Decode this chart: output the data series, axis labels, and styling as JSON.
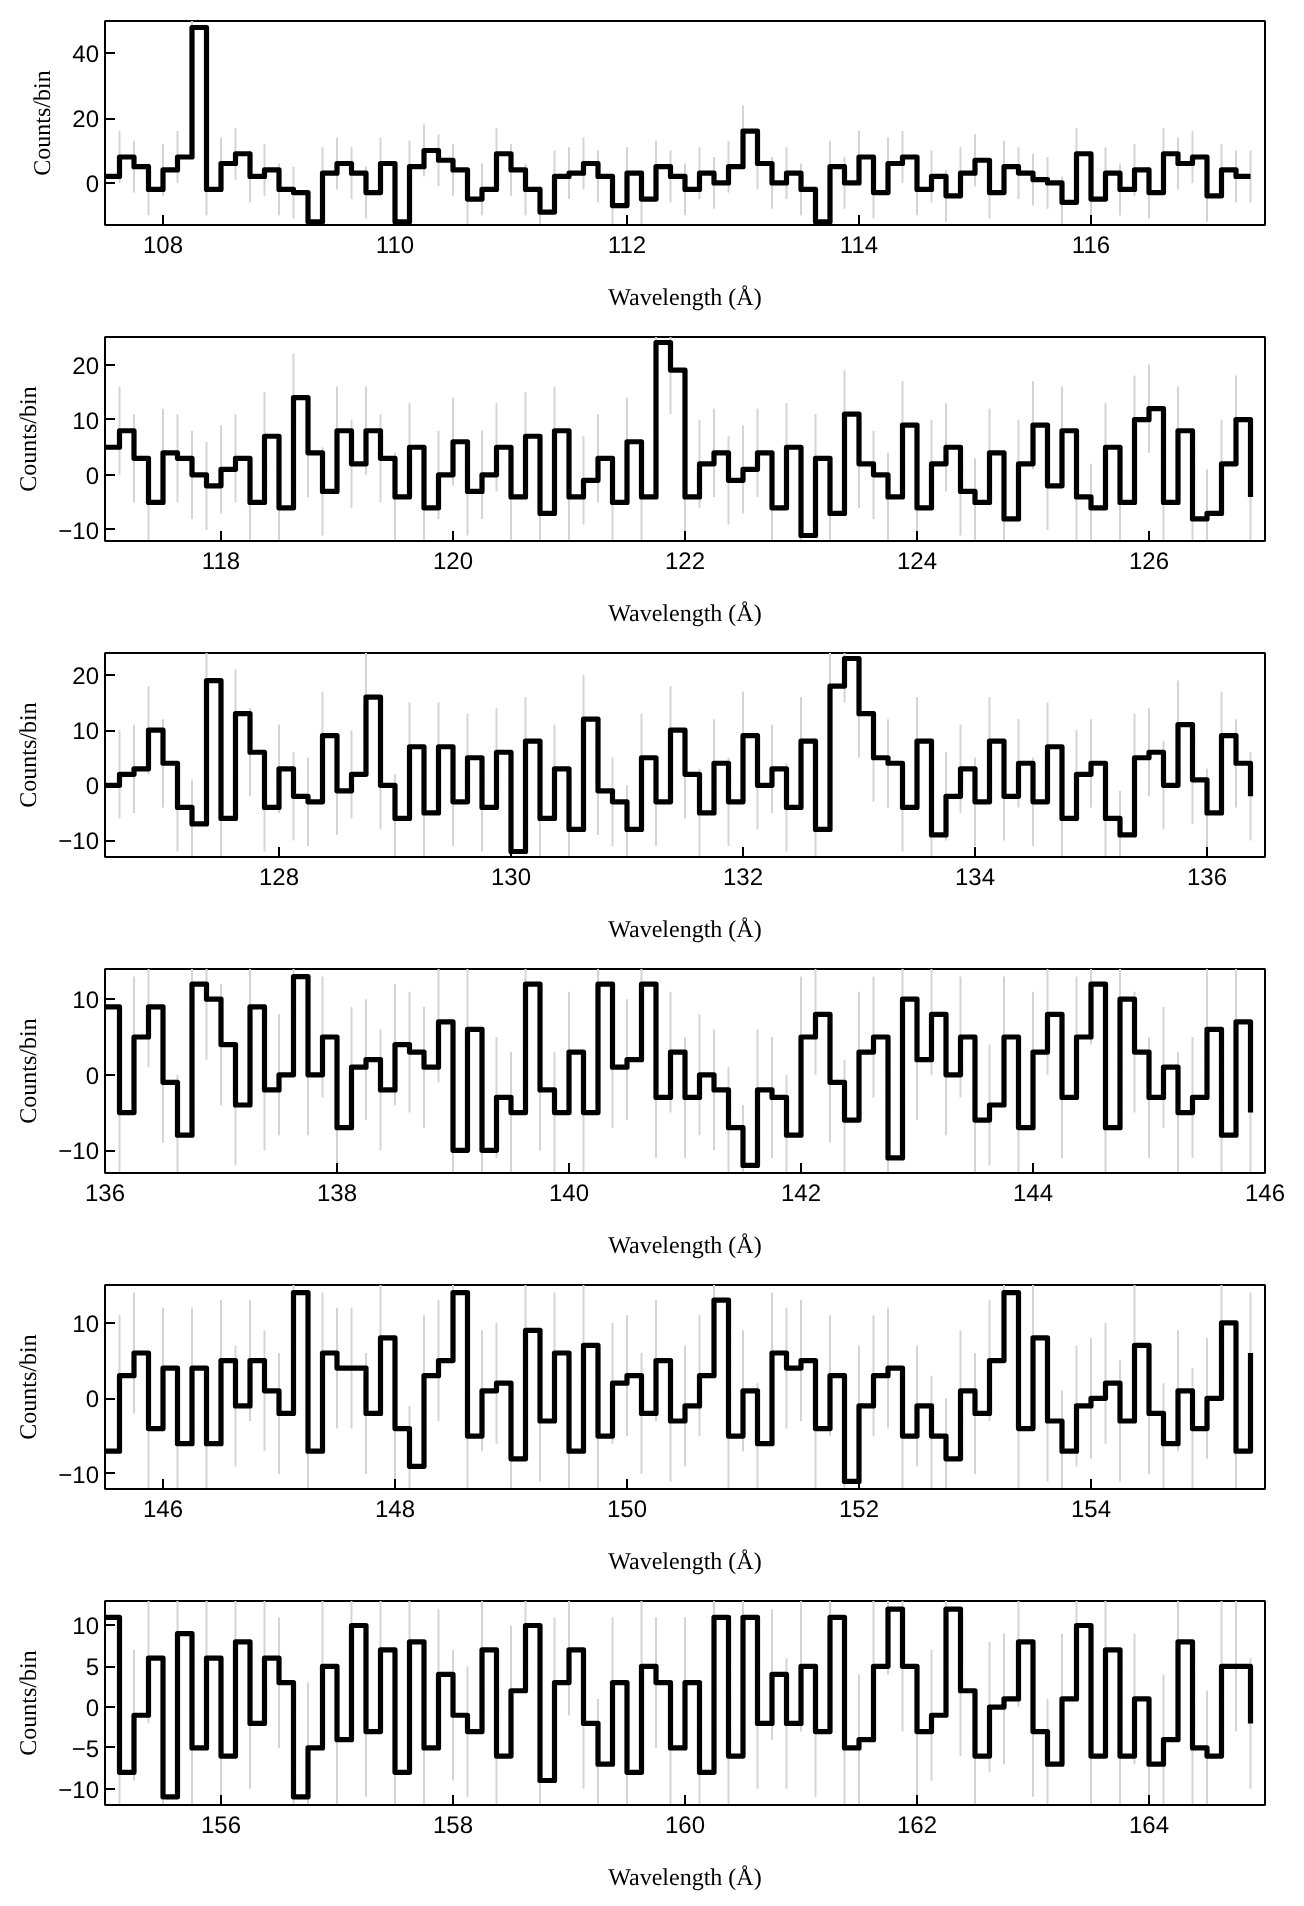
{
  "chart_data": [
    {
      "type": "step",
      "xlabel": "Wavelength (Å)",
      "ylabel": "Counts/bin",
      "xlim": [
        107.5,
        117.5
      ],
      "ylim": [
        -13,
        50
      ],
      "xticks": [
        108,
        110,
        112,
        114,
        116
      ],
      "yticks": [
        0,
        20,
        40
      ],
      "x": [
        107.5,
        107.625,
        107.75,
        107.875,
        108,
        108.125,
        108.25,
        108.375,
        108.5,
        108.625,
        108.75,
        108.875,
        109,
        109.125,
        109.25,
        109.375,
        109.5,
        109.625,
        109.75,
        109.875,
        110,
        110.125,
        110.25,
        110.375,
        110.5,
        110.625,
        110.75,
        110.875,
        111,
        111.125,
        111.25,
        111.375,
        111.5,
        111.625,
        111.75,
        111.875,
        112,
        112.125,
        112.25,
        112.375,
        112.5,
        112.625,
        112.75,
        112.875,
        113,
        113.125,
        113.25,
        113.375,
        113.5,
        113.625,
        113.75,
        113.875,
        114,
        114.125,
        114.25,
        114.375,
        114.5,
        114.625,
        114.75,
        114.875,
        115,
        115.125,
        115.25,
        115.375,
        115.5,
        115.625,
        115.75,
        115.875,
        116,
        116.125,
        116.25,
        116.375,
        116.5,
        116.625,
        116.75,
        116.875,
        117,
        117.125,
        117.25,
        117.375
      ],
      "series": [
        {
          "color": "#000000",
          "values": [
            2,
            8,
            5,
            -2,
            4,
            8,
            48,
            -2,
            6,
            9,
            2,
            4,
            -2,
            -3,
            -12,
            3,
            6,
            3,
            -3,
            6,
            -12,
            5,
            10,
            7,
            4,
            -5,
            -2,
            9,
            4,
            -2,
            -9,
            2,
            3,
            6,
            2,
            -7,
            3,
            -5,
            5,
            2,
            -2,
            3,
            0,
            5,
            16,
            6,
            0,
            3,
            -2,
            -12,
            5,
            0,
            8,
            -3,
            6,
            8,
            -2,
            2,
            -4,
            3,
            7,
            -3,
            5,
            3,
            1,
            0,
            -6,
            9,
            -5,
            3,
            -2,
            4,
            -3,
            9,
            6,
            8,
            -4,
            4,
            2,
            2
          ],
          "errors": [
            null,
            8,
            8,
            8,
            8,
            8,
            [
              40,
              50
            ],
            8,
            8,
            8,
            8,
            8,
            8,
            8,
            [
              -13,
              -4
            ],
            8,
            8,
            8,
            8,
            8,
            [
              -13,
              -4
            ],
            8,
            8,
            8,
            8,
            8,
            8,
            8,
            8,
            8,
            [
              -13,
              -1
            ],
            8,
            8,
            8,
            8,
            [
              -13,
              1
            ],
            8,
            8,
            8,
            8,
            8,
            8,
            8,
            8,
            8,
            8,
            8,
            8,
            8,
            [
              -13,
              -4
            ],
            8,
            8,
            8,
            8,
            8,
            8,
            8,
            8,
            8,
            8,
            8,
            8,
            8,
            8,
            8,
            8,
            [
              -13,
              2
            ],
            8,
            8,
            8,
            8,
            8,
            8,
            8,
            8,
            8,
            8,
            8,
            8,
            8
          ]
        }
      ]
    },
    {
      "type": "step",
      "xlabel": "Wavelength (Å)",
      "ylabel": "Counts/bin",
      "xlim": [
        117,
        127
      ],
      "ylim": [
        -12,
        25
      ],
      "xticks": [
        118,
        120,
        122,
        124,
        126
      ],
      "yticks": [
        -10,
        0,
        10,
        20
      ],
      "x": [
        117,
        117.125,
        117.25,
        117.375,
        117.5,
        117.625,
        117.75,
        117.875,
        118,
        118.125,
        118.25,
        118.375,
        118.5,
        118.625,
        118.75,
        118.875,
        119,
        119.125,
        119.25,
        119.375,
        119.5,
        119.625,
        119.75,
        119.875,
        120,
        120.125,
        120.25,
        120.375,
        120.5,
        120.625,
        120.75,
        120.875,
        121,
        121.125,
        121.25,
        121.375,
        121.5,
        121.625,
        121.75,
        121.875,
        122,
        122.125,
        122.25,
        122.375,
        122.5,
        122.625,
        122.75,
        122.875,
        123,
        123.125,
        123.25,
        123.375,
        123.5,
        123.625,
        123.75,
        123.875,
        124,
        124.125,
        124.25,
        124.375,
        124.5,
        124.625,
        124.75,
        124.875,
        125,
        125.125,
        125.25,
        125.375,
        125.5,
        125.625,
        125.75,
        125.875,
        126,
        126.125,
        126.25,
        126.375,
        126.5,
        126.625,
        126.75,
        126.875
      ],
      "series": [
        {
          "color": "#000000",
          "values": [
            5,
            8,
            3,
            -5,
            4,
            3,
            0,
            -2,
            1,
            3,
            -5,
            7,
            -6,
            14,
            4,
            -3,
            8,
            2,
            8,
            3,
            -4,
            5,
            -6,
            0,
            6,
            -3,
            0,
            5,
            -4,
            7,
            -7,
            8,
            -4,
            -1,
            3,
            -5,
            6,
            -4,
            24,
            19,
            -4,
            2,
            4,
            -1,
            1,
            4,
            -6,
            5,
            -11,
            3,
            -7,
            11,
            2,
            0,
            -4,
            9,
            -6,
            2,
            5,
            -3,
            -5,
            4,
            -8,
            2,
            9,
            -2,
            8,
            -4,
            -6,
            5,
            -5,
            10,
            12,
            -5,
            8,
            -8,
            -7,
            2,
            10,
            -4
          ],
          "errors": [
            null,
            8,
            8,
            [
              -12,
              3
            ],
            8,
            8,
            8,
            8,
            8,
            8,
            [
              -12,
              3
            ],
            8,
            [
              -12,
              2
            ],
            8,
            8,
            8,
            8,
            8,
            8,
            8,
            8,
            8,
            [
              -12,
              2
            ],
            8,
            8,
            8,
            8,
            8,
            8,
            8,
            [
              -12,
              1
            ],
            8,
            8,
            8,
            8,
            [
              -12,
              3
            ],
            8,
            8,
            [
              16,
              25
            ],
            [
              11,
              25
            ],
            8,
            8,
            8,
            8,
            8,
            8,
            [
              -12,
              2
            ],
            8,
            [
              -12,
              -3
            ],
            8,
            [
              -12,
              1
            ],
            8,
            8,
            8,
            8,
            8,
            [
              -12,
              2
            ],
            8,
            8,
            8,
            [
              -12,
              3
            ],
            8,
            [
              -12,
              0
            ],
            8,
            8,
            8,
            8,
            8,
            [
              -12,
              2
            ],
            8,
            [
              -12,
              3
            ],
            8,
            8,
            [
              -12,
              3
            ],
            8,
            [
              -12,
              0
            ],
            [
              -12,
              1
            ],
            8,
            8,
            8
          ]
        }
      ]
    },
    {
      "type": "step",
      "xlabel": "Wavelength (Å)",
      "ylabel": "Counts/bin",
      "xlim": [
        126.5,
        136.5
      ],
      "ylim": [
        -13,
        24
      ],
      "xticks": [
        128,
        130,
        132,
        134,
        136
      ],
      "yticks": [
        -10,
        0,
        10,
        20
      ],
      "x": [
        126.5,
        126.625,
        126.75,
        126.875,
        127,
        127.125,
        127.25,
        127.375,
        127.5,
        127.625,
        127.75,
        127.875,
        128,
        128.125,
        128.25,
        128.375,
        128.5,
        128.625,
        128.75,
        128.875,
        129,
        129.125,
        129.25,
        129.375,
        129.5,
        129.625,
        129.75,
        129.875,
        130,
        130.125,
        130.25,
        130.375,
        130.5,
        130.625,
        130.75,
        130.875,
        131,
        131.125,
        131.25,
        131.375,
        131.5,
        131.625,
        131.75,
        131.875,
        132,
        132.125,
        132.25,
        132.375,
        132.5,
        132.625,
        132.75,
        132.875,
        133,
        133.125,
        133.25,
        133.375,
        133.5,
        133.625,
        133.75,
        133.875,
        134,
        134.125,
        134.25,
        134.375,
        134.5,
        134.625,
        134.75,
        134.875,
        135,
        135.125,
        135.25,
        135.375,
        135.5,
        135.625,
        135.75,
        135.875,
        136,
        136.125,
        136.25,
        136.375
      ],
      "series": [
        {
          "color": "#000000",
          "values": [
            0,
            2,
            3,
            10,
            4,
            -4,
            -7,
            19,
            -6,
            13,
            6,
            -4,
            3,
            -2,
            -3,
            9,
            -1,
            2,
            16,
            0,
            -6,
            7,
            -5,
            7,
            -3,
            5,
            -4,
            6,
            -12,
            8,
            -6,
            3,
            -8,
            12,
            -1,
            -3,
            -8,
            5,
            -3,
            10,
            2,
            -5,
            4,
            -3,
            9,
            0,
            3,
            -4,
            8,
            -8,
            18,
            23,
            13,
            5,
            4,
            -4,
            8,
            -9,
            -2,
            3,
            -3,
            8,
            -2,
            4,
            -3,
            7,
            -6,
            2,
            4,
            -6,
            -9,
            5,
            6,
            0,
            11,
            1,
            -5,
            9,
            4,
            -2
          ],
          "errors": [
            null,
            8,
            8,
            8,
            8,
            8,
            [
              -13,
              1
            ],
            [
              11,
              24
            ],
            [
              -13,
              2
            ],
            8,
            8,
            8,
            8,
            8,
            8,
            8,
            8,
            8,
            8,
            8,
            [
              -13,
              2
            ],
            8,
            8,
            8,
            8,
            8,
            8,
            8,
            [
              -13,
              -4
            ],
            8,
            [
              -13,
              2
            ],
            8,
            [
              -13,
              0
            ],
            8,
            8,
            8,
            [
              -13,
              0
            ],
            8,
            8,
            8,
            8,
            8,
            8,
            8,
            8,
            8,
            8,
            8,
            8,
            [
              -13,
              0
            ],
            [
              10,
              24
            ],
            [
              15,
              24
            ],
            8,
            8,
            8,
            8,
            8,
            [
              -13,
              -1
            ],
            8,
            8,
            8,
            8,
            8,
            8,
            8,
            8,
            [
              -13,
              2
            ],
            8,
            8,
            [
              -13,
              2
            ],
            [
              -13,
              -1
            ],
            8,
            8,
            8,
            8,
            8,
            8,
            8,
            8,
            8
          ]
        }
      ]
    },
    {
      "type": "step",
      "xlabel": "Wavelength (Å)",
      "ylabel": "Counts/bin",
      "xlim": [
        136,
        146
      ],
      "ylim": [
        -13,
        14
      ],
      "xticks": [
        136,
        138,
        140,
        142,
        144,
        146
      ],
      "yticks": [
        -10,
        0,
        10
      ],
      "x": [
        136,
        136.125,
        136.25,
        136.375,
        136.5,
        136.625,
        136.75,
        136.875,
        137,
        137.125,
        137.25,
        137.375,
        137.5,
        137.625,
        137.75,
        137.875,
        138,
        138.125,
        138.25,
        138.375,
        138.5,
        138.625,
        138.75,
        138.875,
        139,
        139.125,
        139.25,
        139.375,
        139.5,
        139.625,
        139.75,
        139.875,
        140,
        140.125,
        140.25,
        140.375,
        140.5,
        140.625,
        140.75,
        140.875,
        141,
        141.125,
        141.25,
        141.375,
        141.5,
        141.625,
        141.75,
        141.875,
        142,
        142.125,
        142.25,
        142.375,
        142.5,
        142.625,
        142.75,
        142.875,
        143,
        143.125,
        143.25,
        143.375,
        143.5,
        143.625,
        143.75,
        143.875,
        144,
        144.125,
        144.25,
        144.375,
        144.5,
        144.625,
        144.75,
        144.875,
        145,
        145.125,
        145.25,
        145.375,
        145.5,
        145.625,
        145.75,
        145.875
      ],
      "series": [
        {
          "color": "#000000",
          "values": [
            9,
            -5,
            5,
            9,
            -1,
            -8,
            12,
            10,
            4,
            -4,
            9,
            -2,
            0,
            13,
            0,
            5,
            -7,
            1,
            2,
            -2,
            4,
            3,
            1,
            7,
            -10,
            6,
            -10,
            -3,
            -5,
            12,
            -2,
            -5,
            3,
            -5,
            12,
            1,
            2,
            12,
            -3,
            3,
            -3,
            0,
            -2,
            -7,
            -12,
            -2,
            -3,
            -8,
            5,
            8,
            -1,
            -6,
            3,
            5,
            -11,
            10,
            2,
            8,
            0,
            5,
            -6,
            -4,
            5,
            -7,
            3,
            8,
            -3,
            5,
            12,
            -7,
            10,
            3,
            -3,
            1,
            -5,
            -3,
            6,
            -8,
            7,
            -5
          ],
          "errors": [
            null,
            8,
            8,
            [
              1,
              14
            ],
            8,
            [
              -13,
              0
            ],
            [
              4,
              14
            ],
            [
              2,
              14
            ],
            8,
            8,
            [
              1,
              14
            ],
            8,
            8,
            [
              5,
              14
            ],
            8,
            8,
            [
              -13,
              1
            ],
            8,
            8,
            8,
            8,
            8,
            8,
            [
              -1,
              14
            ],
            [
              -13,
              -2
            ],
            8,
            [
              -13,
              -2
            ],
            8,
            8,
            [
              4,
              14
            ],
            8,
            8,
            8,
            8,
            [
              4,
              14
            ],
            8,
            8,
            [
              4,
              14
            ],
            8,
            8,
            8,
            8,
            8,
            [
              -13,
              1
            ],
            [
              -13,
              -4
            ],
            8,
            8,
            [
              -13,
              0
            ],
            8,
            [
              0,
              14
            ],
            8,
            [
              -13,
              2
            ],
            8,
            8,
            [
              -13,
              -3
            ],
            [
              2,
              14
            ],
            8,
            [
              0,
              14
            ],
            8,
            8,
            [
              -13,
              2
            ],
            8,
            8,
            [
              -13,
              1
            ],
            8,
            [
              0,
              14
            ],
            8,
            8,
            [
              4,
              14
            ],
            [
              -13,
              1
            ],
            [
              2,
              14
            ],
            8,
            8,
            8,
            8,
            8,
            8,
            [
              -13,
              0
            ],
            [
              -1,
              14
            ],
            8
          ]
        }
      ]
    },
    {
      "type": "step",
      "xlabel": "Wavelength (Å)",
      "ylabel": "Counts/bin",
      "xlim": [
        145.5,
        155.5
      ],
      "ylim": [
        -12,
        15
      ],
      "xticks": [
        146,
        148,
        150,
        152,
        154
      ],
      "yticks": [
        -10,
        0,
        10
      ],
      "x": [
        145.5,
        145.625,
        145.75,
        145.875,
        146,
        146.125,
        146.25,
        146.375,
        146.5,
        146.625,
        146.75,
        146.875,
        147,
        147.125,
        147.25,
        147.375,
        147.5,
        147.625,
        147.75,
        147.875,
        148,
        148.125,
        148.25,
        148.375,
        148.5,
        148.625,
        148.75,
        148.875,
        149,
        149.125,
        149.25,
        149.375,
        149.5,
        149.625,
        149.75,
        149.875,
        150,
        150.125,
        150.25,
        150.375,
        150.5,
        150.625,
        150.75,
        150.875,
        151,
        151.125,
        151.25,
        151.375,
        151.5,
        151.625,
        151.75,
        151.875,
        152,
        152.125,
        152.25,
        152.375,
        152.5,
        152.625,
        152.75,
        152.875,
        153,
        153.125,
        153.25,
        153.375,
        153.5,
        153.625,
        153.75,
        153.875,
        154,
        154.125,
        154.25,
        154.375,
        154.5,
        154.625,
        154.75,
        154.875,
        155,
        155.125,
        155.25,
        155.375
      ],
      "series": [
        {
          "color": "#000000",
          "values": [
            -7,
            3,
            6,
            -4,
            4,
            -6,
            4,
            -6,
            5,
            -1,
            5,
            1,
            -2,
            14,
            -7,
            6,
            4,
            4,
            -2,
            8,
            -4,
            -9,
            3,
            5,
            14,
            -5,
            1,
            2,
            -8,
            9,
            -3,
            6,
            -7,
            7,
            -5,
            2,
            3,
            -2,
            5,
            -3,
            -1,
            3,
            13,
            -5,
            1,
            -6,
            6,
            4,
            5,
            -4,
            3,
            -11,
            -1,
            3,
            4,
            -5,
            -1,
            -5,
            -8,
            1,
            -2,
            5,
            14,
            -4,
            8,
            -3,
            -7,
            -1,
            0,
            2,
            -3,
            7,
            -2,
            -6,
            1,
            -4,
            0,
            10,
            -7,
            6
          ],
          "errors": [
            null,
            8,
            8,
            8,
            8,
            [
              -12,
              2
            ],
            8,
            [
              -12,
              2
            ],
            8,
            8,
            8,
            8,
            8,
            [
              6,
              15
            ],
            [
              -12,
              1
            ],
            8,
            8,
            8,
            8,
            [
              0,
              15
            ],
            8,
            [
              -12,
              -1
            ],
            8,
            8,
            [
              6,
              15
            ],
            [
              -12,
              3
            ],
            8,
            8,
            [
              -12,
              0
            ],
            [
              1,
              15
            ],
            8,
            8,
            [
              -12,
              1
            ],
            8,
            [
              -12,
              3
            ],
            8,
            8,
            8,
            8,
            8,
            8,
            8,
            [
              5,
              15
            ],
            [
              -12,
              3
            ],
            8,
            [
              -12,
              2
            ],
            8,
            8,
            8,
            8,
            8,
            [
              -12,
              -3
            ],
            8,
            8,
            8,
            [
              -12,
              3
            ],
            8,
            [
              -12,
              3
            ],
            [
              -12,
              0
            ],
            8,
            8,
            8,
            [
              6,
              15
            ],
            8,
            [
              0,
              15
            ],
            8,
            [
              -12,
              1
            ],
            8,
            8,
            8,
            8,
            8,
            8,
            [
              -12,
              2
            ],
            8,
            8,
            8,
            [
              2,
              15
            ],
            [
              -12,
              1
            ],
            8
          ]
        }
      ]
    },
    {
      "type": "step",
      "xlabel": "Wavelength (Å)",
      "ylabel": "Counts/bin",
      "xlim": [
        155,
        165
      ],
      "ylim": [
        -12,
        13
      ],
      "xticks": [
        156,
        158,
        160,
        162,
        164
      ],
      "yticks": [
        -10,
        -5,
        0,
        5,
        10
      ],
      "x": [
        155,
        155.125,
        155.25,
        155.375,
        155.5,
        155.625,
        155.75,
        155.875,
        156,
        156.125,
        156.25,
        156.375,
        156.5,
        156.625,
        156.75,
        156.875,
        157,
        157.125,
        157.25,
        157.375,
        157.5,
        157.625,
        157.75,
        157.875,
        158,
        158.125,
        158.25,
        158.375,
        158.5,
        158.625,
        158.75,
        158.875,
        159,
        159.125,
        159.25,
        159.375,
        159.5,
        159.625,
        159.75,
        159.875,
        160,
        160.125,
        160.25,
        160.375,
        160.5,
        160.625,
        160.75,
        160.875,
        161,
        161.125,
        161.25,
        161.375,
        161.5,
        161.625,
        161.75,
        161.875,
        162,
        162.125,
        162.25,
        162.375,
        162.5,
        162.625,
        162.75,
        162.875,
        163,
        163.125,
        163.25,
        163.375,
        163.5,
        163.625,
        163.75,
        163.875,
        164,
        164.125,
        164.25,
        164.375,
        164.5,
        164.625,
        164.75,
        164.875
      ],
      "series": [
        {
          "color": "#000000",
          "values": [
            11,
            -8,
            -1,
            6,
            -11,
            9,
            -5,
            6,
            -6,
            8,
            -2,
            6,
            3,
            -11,
            -5,
            5,
            -4,
            10,
            -3,
            7,
            -8,
            8,
            -5,
            4,
            -1,
            -3,
            7,
            -6,
            2,
            10,
            -9,
            3,
            7,
            -2,
            -7,
            3,
            -8,
            5,
            3,
            -5,
            3,
            -8,
            11,
            -6,
            11,
            -2,
            4,
            -2,
            5,
            -3,
            11,
            -5,
            -4,
            5,
            12,
            5,
            -3,
            -1,
            12,
            2,
            -6,
            0,
            1,
            8,
            -3,
            -7,
            1,
            10,
            -6,
            7,
            -6,
            1,
            -7,
            -4,
            8,
            -5,
            -6,
            5,
            5,
            -2
          ],
          "errors": [
            null,
            [
              -12,
              0
            ],
            8,
            [
              -2,
              13
            ],
            [
              -12,
              -3
            ],
            [
              1,
              13
            ],
            [
              -12,
              3
            ],
            [
              -2,
              13
            ],
            [
              -12,
              2
            ],
            [
              0,
              13
            ],
            8,
            [
              -2,
              13
            ],
            8,
            [
              -12,
              -3
            ],
            [
              -12,
              3
            ],
            8,
            8,
            [
              2,
              13
            ],
            8,
            [
              -1,
              13
            ],
            [
              -12,
              0
            ],
            [
              0,
              13
            ],
            [
              -12,
              3
            ],
            8,
            8,
            8,
            [
              -1,
              13
            ],
            [
              -12,
              2
            ],
            8,
            [
              2,
              13
            ],
            [
              -12,
              -1
            ],
            8,
            [
              -1,
              13
            ],
            8,
            [
              -12,
              1
            ],
            8,
            [
              -12,
              0
            ],
            8,
            8,
            [
              -12,
              3
            ],
            8,
            [
              -12,
              0
            ],
            [
              3,
              13
            ],
            [
              -12,
              2
            ],
            [
              3,
              13
            ],
            8,
            8,
            8,
            8,
            8,
            [
              3,
              13
            ],
            [
              -12,
              3
            ],
            8,
            8,
            [
              4,
              13
            ],
            8,
            8,
            8,
            [
              4,
              13
            ],
            8,
            [
              -12,
              2
            ],
            8,
            8,
            [
              0,
              13
            ],
            8,
            [
              -12,
              1
            ],
            8,
            [
              2,
              13
            ],
            [
              -12,
              2
            ],
            [
              -1,
              13
            ],
            [
              -12,
              2
            ],
            8,
            [
              -12,
              1
            ],
            8,
            [
              0,
              13
            ],
            [
              -12,
              3
            ],
            [
              -12,
              2
            ],
            8,
            8,
            8
          ]
        }
      ]
    }
  ]
}
